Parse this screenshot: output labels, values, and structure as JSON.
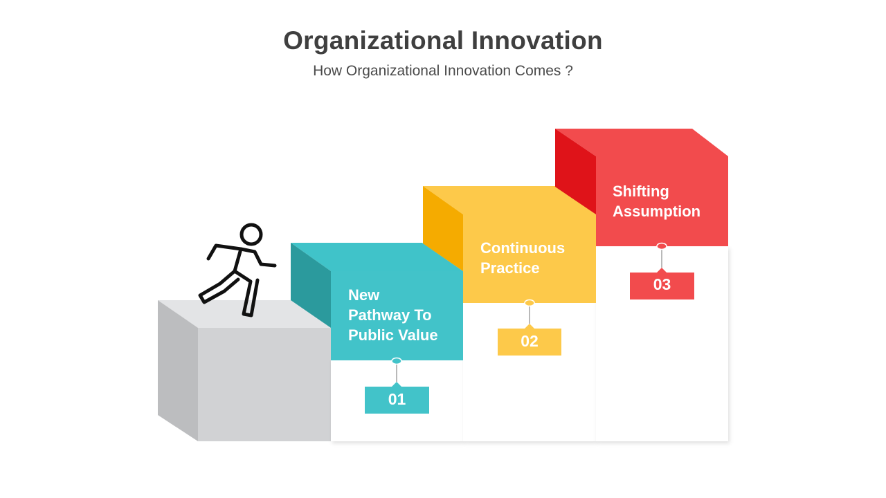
{
  "header": {
    "title": "Organizational Innovation",
    "subtitle": "How Organizational Innovation Comes ?"
  },
  "steps": [
    {
      "number": "01",
      "label_lines": [
        "New",
        "Pathway To",
        "Public Value"
      ],
      "color": "#42c3c9"
    },
    {
      "number": "02",
      "label_lines": [
        "Continuous",
        "Practice"
      ],
      "color": "#fdc94a"
    },
    {
      "number": "03",
      "label_lines": [
        "Shifting",
        "Assumption"
      ],
      "color": "#f24b4d"
    }
  ],
  "icons": {
    "runner": "running-person-icon"
  }
}
